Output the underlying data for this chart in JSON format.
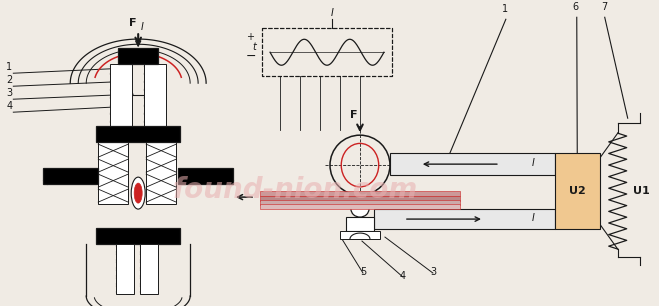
{
  "bg_color": "#f0ebe4",
  "lc": "#1a1a1a",
  "rc": "#cc2222",
  "wm_color": "#e8b0b0",
  "U2_color": "#f0c890",
  "bar_color": "#e8e8e8",
  "label_F": "F",
  "label_I": "I",
  "label_t": "t",
  "label_U1": "U1",
  "label_U2": "U2",
  "wm_text": "found-nion.com",
  "nums_1234": [
    "1",
    "2",
    "3",
    "4"
  ],
  "nums_1": "1",
  "nums_3": "3",
  "nums_4": "4",
  "nums_5": "5",
  "nums_6": "6",
  "nums_7": "7"
}
